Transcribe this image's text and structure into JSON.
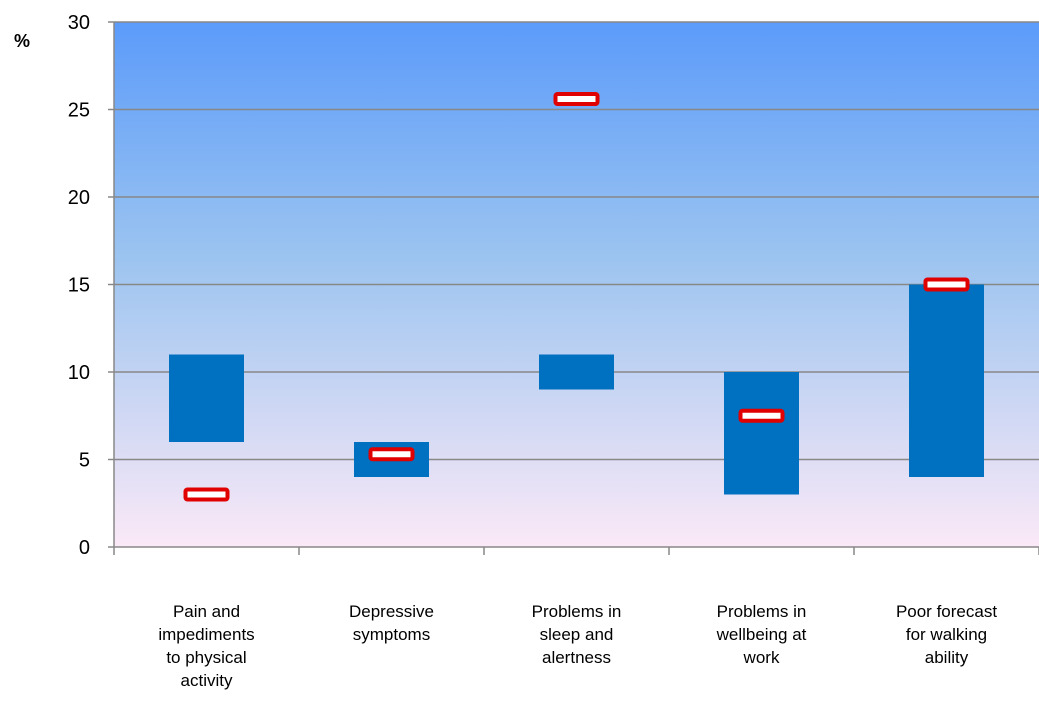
{
  "chart_data": {
    "type": "bar",
    "subtype": "floating-range-with-markers",
    "title": "",
    "xlabel": "",
    "ylabel": "%",
    "ylim": [
      0,
      30
    ],
    "yticks": [
      "0",
      "5",
      "10",
      "15",
      "20",
      "25",
      "30"
    ],
    "grid": "horizontal",
    "legend": "none",
    "categories": [
      [
        "Pain and",
        "impediments",
        "to physical",
        "activity"
      ],
      [
        "Depressive",
        "symptoms"
      ],
      [
        "Problems in",
        "sleep and",
        "alertness"
      ],
      [
        "Problems in",
        "wellbeing at",
        "work"
      ],
      [
        "Poor forecast",
        "for walking",
        "ability"
      ]
    ],
    "series": [
      {
        "type": "range",
        "low": [
          6,
          4,
          9,
          3,
          4
        ],
        "high": [
          11,
          6,
          11,
          10,
          15
        ]
      },
      {
        "type": "marker",
        "values": [
          3,
          5.3,
          25.6,
          7.5,
          15
        ]
      }
    ],
    "colors": {
      "bar": "#0070c0",
      "marker_fill": "#ffffff",
      "marker_stroke": "#e00000",
      "grid": "#888888",
      "bg_top": "#5b9bfa",
      "bg_mid": "#9cc4f0",
      "bg_bottom": "#fbe9f7"
    }
  }
}
